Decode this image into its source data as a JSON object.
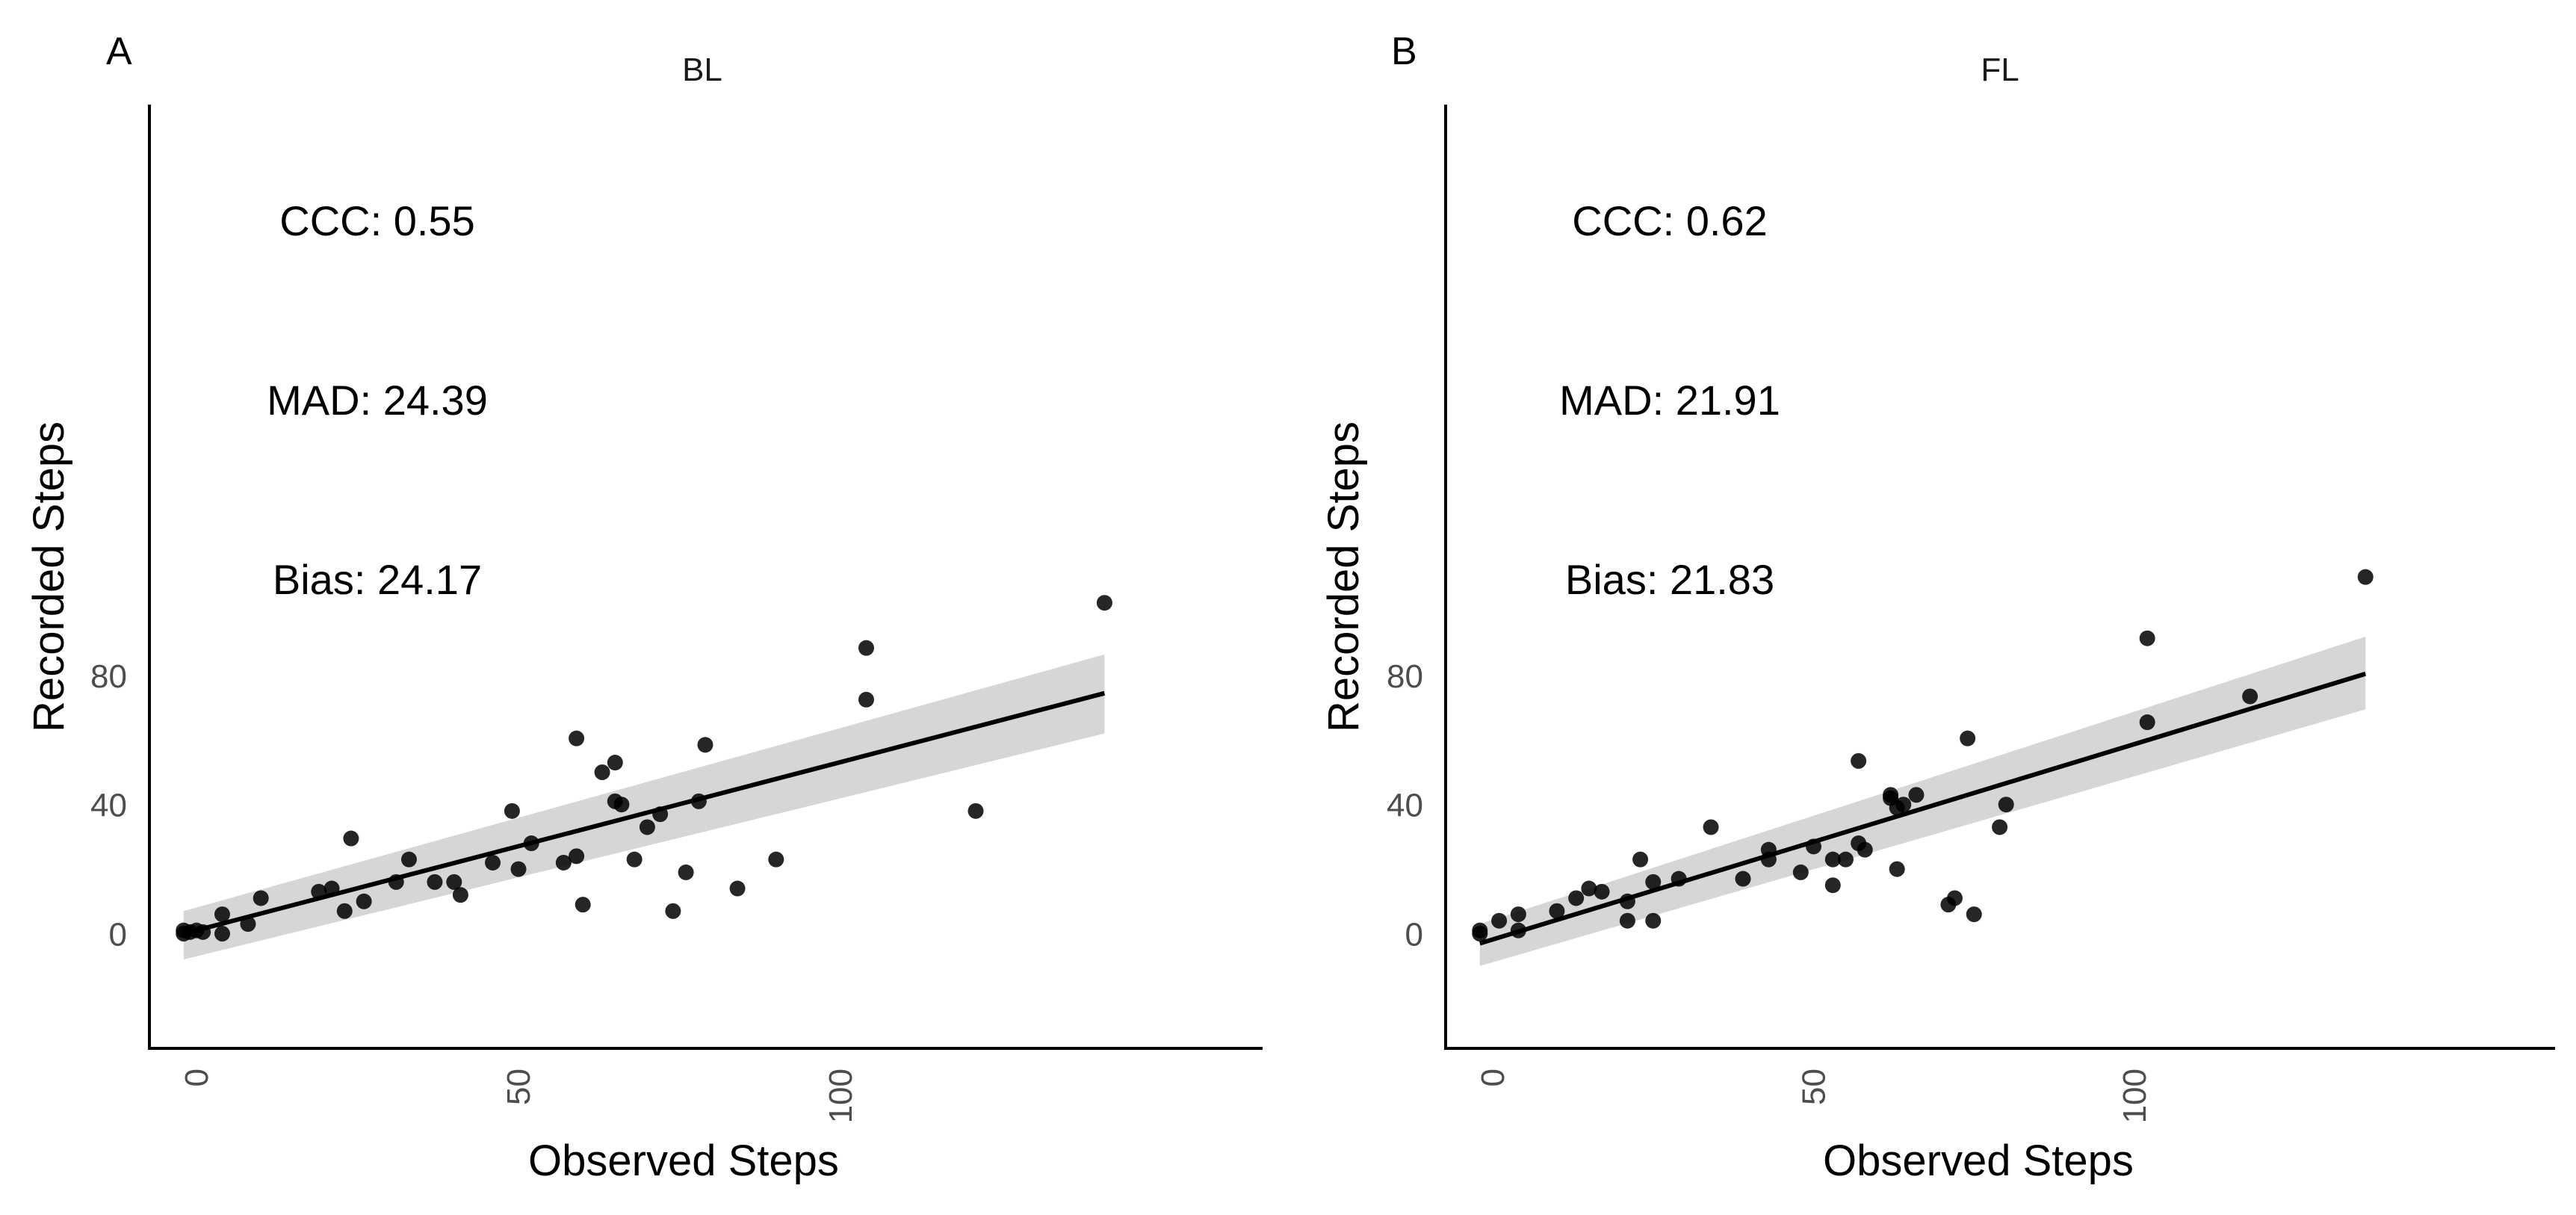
{
  "colors": {
    "point": "#000000",
    "line": "#000000",
    "band": "#d6d6d6",
    "axis": "#000000",
    "tick_text": "#4d4d4d"
  },
  "chart_data": [
    {
      "type": "scatter",
      "panel_label": "A",
      "title": "BL",
      "xlabel": "Observed Steps",
      "ylabel": "Recorded Steps",
      "xlim": [
        -5,
        147
      ],
      "ylim": [
        -16,
        116
      ],
      "x_ticks": [
        0,
        50,
        100
      ],
      "y_ticks": [
        0,
        40,
        80
      ],
      "annotations": [
        "CCC: 0.55",
        "MAD: 24.39",
        "Bias: 24.17"
      ],
      "grid": false,
      "regression": {
        "x": [
          -2,
          141
        ],
        "y": [
          0,
          74.5
        ],
        "band_lower": [
          -8,
          62
        ],
        "band_upper": [
          7,
          86.5
        ]
      },
      "points": [
        [
          -2,
          1
        ],
        [
          -2,
          0
        ],
        [
          -1,
          0.5
        ],
        [
          0,
          1
        ],
        [
          1,
          0.5
        ],
        [
          4,
          6
        ],
        [
          4,
          0
        ],
        [
          8,
          3
        ],
        [
          10,
          11
        ],
        [
          19,
          13
        ],
        [
          21,
          14
        ],
        [
          23,
          7
        ],
        [
          24,
          29.5
        ],
        [
          26,
          10
        ],
        [
          31,
          16
        ],
        [
          33,
          23
        ],
        [
          37,
          16
        ],
        [
          40,
          16
        ],
        [
          41,
          12
        ],
        [
          46,
          22
        ],
        [
          49,
          38
        ],
        [
          50,
          20
        ],
        [
          52,
          28
        ],
        [
          57,
          22
        ],
        [
          59,
          60.5
        ],
        [
          59,
          24
        ],
        [
          60,
          9
        ],
        [
          63,
          50
        ],
        [
          65,
          53
        ],
        [
          65,
          41
        ],
        [
          66,
          40
        ],
        [
          68,
          23
        ],
        [
          70,
          33
        ],
        [
          72,
          37
        ],
        [
          74,
          7
        ],
        [
          76,
          19
        ],
        [
          78,
          41
        ],
        [
          79,
          58.5
        ],
        [
          84,
          14
        ],
        [
          90,
          23
        ],
        [
          104,
          88.5
        ],
        [
          104,
          72.5
        ],
        [
          121,
          38
        ],
        [
          141,
          102.5
        ]
      ]
    },
    {
      "type": "scatter",
      "panel_label": "B",
      "title": "FL",
      "xlabel": "Observed Steps",
      "ylabel": "Recorded Steps",
      "xlim": [
        -5,
        147
      ],
      "ylim": [
        -16,
        116
      ],
      "x_ticks": [
        0,
        50,
        100
      ],
      "y_ticks": [
        0,
        40,
        80
      ],
      "annotations": [
        "CCC: 0.62",
        "MAD: 21.91",
        "Bias: 21.83"
      ],
      "grid": false,
      "regression": {
        "x": [
          -2,
          136
        ],
        "y": [
          -3,
          80.5
        ],
        "band_lower": [
          -10,
          69.5
        ],
        "band_upper": [
          3,
          92
        ]
      },
      "points": [
        [
          -2,
          1
        ],
        [
          -2,
          0
        ],
        [
          1,
          4
        ],
        [
          4,
          6
        ],
        [
          4,
          1
        ],
        [
          10,
          7
        ],
        [
          13,
          11
        ],
        [
          15,
          14
        ],
        [
          17,
          13
        ],
        [
          21,
          4
        ],
        [
          21,
          10
        ],
        [
          23,
          23
        ],
        [
          25,
          16
        ],
        [
          25,
          4
        ],
        [
          29,
          17
        ],
        [
          34,
          33
        ],
        [
          39,
          17
        ],
        [
          43,
          26
        ],
        [
          43,
          23
        ],
        [
          48,
          19
        ],
        [
          50,
          27
        ],
        [
          53,
          23
        ],
        [
          53,
          15
        ],
        [
          55,
          23
        ],
        [
          57,
          53.5
        ],
        [
          57,
          28
        ],
        [
          58,
          26
        ],
        [
          62,
          43
        ],
        [
          62,
          42
        ],
        [
          63,
          39
        ],
        [
          63,
          20
        ],
        [
          64,
          40
        ],
        [
          66,
          43
        ],
        [
          71,
          9
        ],
        [
          72,
          11
        ],
        [
          74,
          60.5
        ],
        [
          75,
          6
        ],
        [
          79,
          33
        ],
        [
          80,
          40
        ],
        [
          102,
          91.5
        ],
        [
          102,
          65.5
        ],
        [
          118,
          73.5
        ],
        [
          136,
          110.5
        ]
      ]
    }
  ]
}
